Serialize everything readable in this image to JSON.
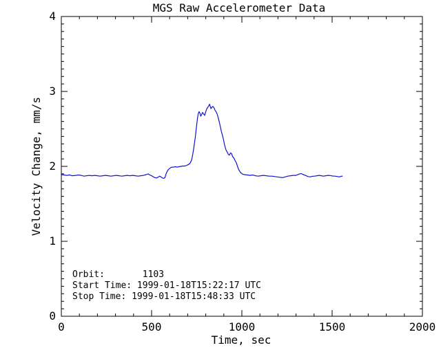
{
  "window": {
    "background_color": "#ffffff",
    "foreground_color": "#000000"
  },
  "chart_data": {
    "type": "line",
    "title": "MGS Raw Accelerometer Data",
    "xlabel": "Time, sec",
    "ylabel": "Velocity Change, mm/s",
    "xlim": [
      0,
      2000
    ],
    "ylim": [
      0,
      4
    ],
    "xticks": [
      0,
      500,
      1000,
      1500,
      2000
    ],
    "yticks": [
      0,
      1,
      2,
      3,
      4
    ],
    "x_minor_interval": 100,
    "y_minor_interval": 0.1,
    "grid": "off",
    "legend": "none",
    "line_color": "#1010d0",
    "axis_color": "#000000",
    "series": [
      {
        "name": "velocity-change",
        "points": [
          [
            0,
            1.89
          ],
          [
            15,
            1.885
          ],
          [
            30,
            1.88
          ],
          [
            45,
            1.885
          ],
          [
            60,
            1.875
          ],
          [
            80,
            1.88
          ],
          [
            95,
            1.885
          ],
          [
            110,
            1.88
          ],
          [
            125,
            1.87
          ],
          [
            140,
            1.875
          ],
          [
            155,
            1.88
          ],
          [
            170,
            1.875
          ],
          [
            185,
            1.88
          ],
          [
            200,
            1.875
          ],
          [
            215,
            1.87
          ],
          [
            230,
            1.875
          ],
          [
            245,
            1.88
          ],
          [
            260,
            1.875
          ],
          [
            275,
            1.87
          ],
          [
            290,
            1.875
          ],
          [
            305,
            1.88
          ],
          [
            320,
            1.875
          ],
          [
            335,
            1.87
          ],
          [
            350,
            1.875
          ],
          [
            365,
            1.88
          ],
          [
            380,
            1.875
          ],
          [
            395,
            1.88
          ],
          [
            410,
            1.875
          ],
          [
            425,
            1.87
          ],
          [
            440,
            1.875
          ],
          [
            455,
            1.88
          ],
          [
            470,
            1.89
          ],
          [
            480,
            1.9
          ],
          [
            490,
            1.885
          ],
          [
            500,
            1.875
          ],
          [
            510,
            1.86
          ],
          [
            520,
            1.85
          ],
          [
            528,
            1.845
          ],
          [
            536,
            1.855
          ],
          [
            544,
            1.87
          ],
          [
            552,
            1.86
          ],
          [
            560,
            1.845
          ],
          [
            568,
            1.84
          ],
          [
            574,
            1.85
          ],
          [
            580,
            1.9
          ],
          [
            588,
            1.94
          ],
          [
            596,
            1.965
          ],
          [
            604,
            1.98
          ],
          [
            612,
            1.99
          ],
          [
            622,
            1.99
          ],
          [
            632,
            1.995
          ],
          [
            642,
            1.99
          ],
          [
            652,
            1.995
          ],
          [
            662,
            2.0
          ],
          [
            672,
            2.005
          ],
          [
            682,
            2.005
          ],
          [
            692,
            2.01
          ],
          [
            700,
            2.02
          ],
          [
            708,
            2.03
          ],
          [
            715,
            2.05
          ],
          [
            722,
            2.09
          ],
          [
            728,
            2.16
          ],
          [
            733,
            2.23
          ],
          [
            738,
            2.32
          ],
          [
            743,
            2.41
          ],
          [
            748,
            2.52
          ],
          [
            753,
            2.62
          ],
          [
            758,
            2.7
          ],
          [
            763,
            2.73
          ],
          [
            768,
            2.71
          ],
          [
            772,
            2.67
          ],
          [
            777,
            2.69
          ],
          [
            782,
            2.72
          ],
          [
            788,
            2.7
          ],
          [
            794,
            2.68
          ],
          [
            800,
            2.73
          ],
          [
            806,
            2.77
          ],
          [
            812,
            2.79
          ],
          [
            817,
            2.81
          ],
          [
            821,
            2.83
          ],
          [
            825,
            2.8
          ],
          [
            829,
            2.77
          ],
          [
            834,
            2.79
          ],
          [
            840,
            2.8
          ],
          [
            846,
            2.78
          ],
          [
            851,
            2.75
          ],
          [
            857,
            2.73
          ],
          [
            863,
            2.7
          ],
          [
            869,
            2.65
          ],
          [
            875,
            2.59
          ],
          [
            881,
            2.53
          ],
          [
            887,
            2.46
          ],
          [
            893,
            2.41
          ],
          [
            899,
            2.35
          ],
          [
            905,
            2.28
          ],
          [
            912,
            2.22
          ],
          [
            919,
            2.19
          ],
          [
            925,
            2.16
          ],
          [
            931,
            2.15
          ],
          [
            937,
            2.18
          ],
          [
            943,
            2.17
          ],
          [
            949,
            2.13
          ],
          [
            956,
            2.11
          ],
          [
            962,
            2.08
          ],
          [
            969,
            2.05
          ],
          [
            976,
            2.0
          ],
          [
            982,
            1.96
          ],
          [
            989,
            1.93
          ],
          [
            996,
            1.91
          ],
          [
            1005,
            1.895
          ],
          [
            1015,
            1.89
          ],
          [
            1030,
            1.885
          ],
          [
            1045,
            1.88
          ],
          [
            1060,
            1.885
          ],
          [
            1075,
            1.875
          ],
          [
            1090,
            1.87
          ],
          [
            1105,
            1.875
          ],
          [
            1120,
            1.88
          ],
          [
            1135,
            1.875
          ],
          [
            1150,
            1.87
          ],
          [
            1165,
            1.87
          ],
          [
            1180,
            1.865
          ],
          [
            1195,
            1.86
          ],
          [
            1210,
            1.855
          ],
          [
            1225,
            1.85
          ],
          [
            1240,
            1.86
          ],
          [
            1255,
            1.87
          ],
          [
            1270,
            1.875
          ],
          [
            1285,
            1.88
          ],
          [
            1300,
            1.88
          ],
          [
            1315,
            1.895
          ],
          [
            1328,
            1.905
          ],
          [
            1340,
            1.89
          ],
          [
            1352,
            1.88
          ],
          [
            1365,
            1.865
          ],
          [
            1378,
            1.86
          ],
          [
            1390,
            1.868
          ],
          [
            1403,
            1.87
          ],
          [
            1416,
            1.875
          ],
          [
            1428,
            1.88
          ],
          [
            1440,
            1.875
          ],
          [
            1452,
            1.87
          ],
          [
            1465,
            1.875
          ],
          [
            1478,
            1.88
          ],
          [
            1490,
            1.878
          ],
          [
            1502,
            1.872
          ],
          [
            1515,
            1.87
          ],
          [
            1528,
            1.865
          ],
          [
            1540,
            1.86
          ],
          [
            1550,
            1.868
          ],
          [
            1557,
            1.87
          ]
        ]
      }
    ],
    "annotations": {
      "lines": [
        "Orbit:       1103",
        "Start Time: 1999-01-18T15:22:17 UTC",
        "Stop Time: 1999-01-18T15:48:33 UTC"
      ]
    }
  }
}
